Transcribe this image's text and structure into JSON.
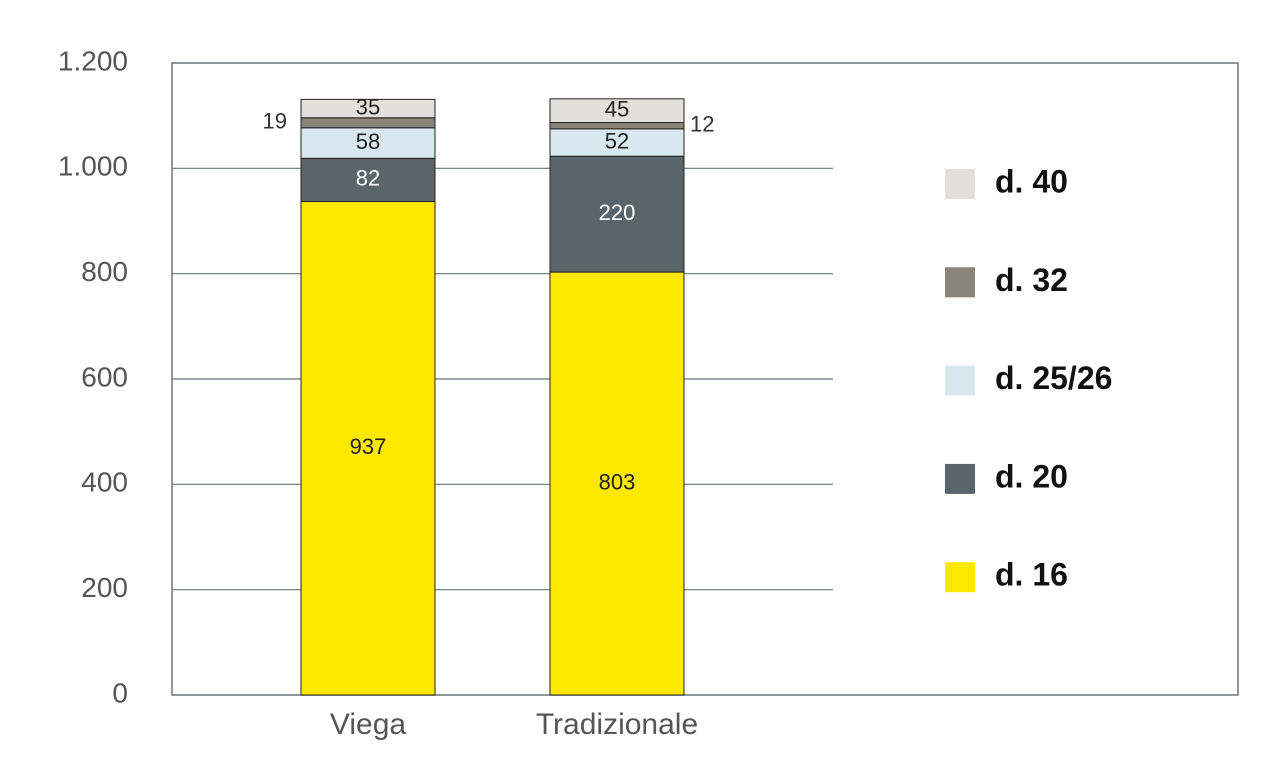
{
  "chart_data": {
    "type": "stacked_bar",
    "categories": [
      "Viega",
      "Tradizionale"
    ],
    "series": [
      {
        "name": "d. 16",
        "color": "#ffe800",
        "values": [
          937,
          803
        ]
      },
      {
        "name": "d. 20",
        "color": "#5a656b",
        "values": [
          82,
          220
        ]
      },
      {
        "name": "d. 25/26",
        "color": "#d9e8ee",
        "values": [
          58,
          52
        ]
      },
      {
        "name": "d. 32",
        "color": "#8a8478",
        "values": [
          19,
          12
        ]
      },
      {
        "name": "d. 40",
        "color": "#e3dfda",
        "values": [
          35,
          45
        ]
      }
    ],
    "ylim": [
      0,
      1200
    ],
    "yticks": [
      0,
      200,
      400,
      600,
      800,
      {
        "value": 1000,
        "label": "1.000"
      },
      {
        "value": 1200,
        "label": "1.200"
      }
    ],
    "grid": true,
    "legend": "right"
  }
}
